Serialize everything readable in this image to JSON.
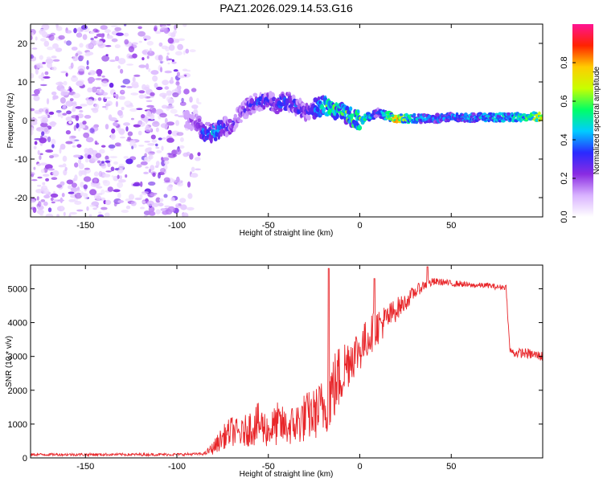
{
  "chart_data": [
    {
      "type": "heatmap",
      "title": "PAZ1.2026.029.14.53.G16",
      "xlabel": "Height of straight line (km)",
      "ylabel": "Frequency (Hz)",
      "xlim": [
        -180,
        100
      ],
      "ylim": [
        -25,
        25
      ],
      "x_ticks": [
        -150,
        -100,
        -50,
        0,
        50
      ],
      "x_tick_labels": [
        "-150",
        "-100",
        "-50",
        "0",
        "50"
      ],
      "y_ticks": [
        -20,
        -10,
        0,
        10,
        20
      ],
      "y_tick_labels": [
        "-20",
        "-10",
        "0",
        "10",
        "20"
      ],
      "colorbar": {
        "label": "Normalized spectral amplitude",
        "range": [
          0,
          1
        ],
        "ticks": [
          0.0,
          0.2,
          0.4,
          0.6,
          0.8
        ],
        "tick_labels": [
          "0.0",
          "0.2",
          "0.4",
          "0.6",
          "0.8"
        ],
        "colors": [
          "#ffffff",
          "#d9b3ff",
          "#8a2be2",
          "#2a2aff",
          "#00ccff",
          "#00ff66",
          "#c8ff00",
          "#ffcc00",
          "#ff2200",
          "#ff1493"
        ]
      },
      "ridge": {
        "x": [
          -95,
          -90,
          -85,
          -80,
          -75,
          -70,
          -65,
          -60,
          -55,
          -50,
          -45,
          -40,
          -35,
          -30,
          -25,
          -20,
          -15,
          -10,
          -5,
          0,
          10,
          20,
          30,
          40,
          50,
          60,
          70,
          80,
          90,
          100
        ],
        "freq": [
          0,
          0,
          -3,
          -3,
          -2,
          -1,
          2,
          4,
          5,
          5,
          4,
          5,
          4,
          2,
          3,
          4,
          3,
          2,
          1,
          0,
          2,
          0.5,
          0.5,
          0.5,
          0.8,
          0.8,
          0.8,
          0.8,
          1,
          1
        ],
        "amplitude": [
          0.2,
          0.25,
          0.45,
          0.5,
          0.4,
          0.35,
          0.3,
          0.35,
          0.4,
          0.4,
          0.4,
          0.45,
          0.4,
          0.35,
          0.4,
          0.6,
          0.65,
          0.6,
          0.75,
          0.7,
          0.35,
          0.9,
          0.5,
          0.45,
          0.45,
          0.5,
          0.5,
          0.55,
          0.6,
          0.85
        ],
        "noise_region": [
          -180,
          -90
        ]
      }
    },
    {
      "type": "line",
      "xlabel": "Height of straight line (km)",
      "ylabel": "SNR (10 * v/v)",
      "xlim": [
        -180,
        100
      ],
      "ylim": [
        0,
        5700
      ],
      "x_ticks": [
        -150,
        -100,
        -50,
        0,
        50
      ],
      "x_tick_labels": [
        "-150",
        "-100",
        "-50",
        "0",
        "50"
      ],
      "y_ticks": [
        0,
        1000,
        2000,
        3000,
        4000,
        5000
      ],
      "y_tick_labels": [
        "0",
        "1000",
        "2000",
        "3000",
        "4000",
        "5000"
      ],
      "color": "#e8262a",
      "envelope": {
        "x": [
          -180,
          -150,
          -100,
          -85,
          -80,
          -75,
          -70,
          -65,
          -60,
          -55,
          -50,
          -45,
          -40,
          -35,
          -30,
          -25,
          -20,
          -15,
          -10,
          -5,
          0,
          5,
          10,
          15,
          20,
          25,
          30,
          35,
          40,
          45,
          50,
          55,
          60,
          65,
          70,
          75,
          80,
          82,
          84,
          90,
          95,
          100
        ],
        "mean": [
          100,
          100,
          100,
          120,
          300,
          600,
          800,
          700,
          900,
          1000,
          800,
          1000,
          900,
          1000,
          1200,
          1300,
          1500,
          2000,
          2500,
          3000,
          3200,
          3600,
          3900,
          4100,
          4400,
          4600,
          4900,
          5100,
          5200,
          5200,
          5150,
          5150,
          5100,
          5100,
          5100,
          5050,
          5050,
          3200,
          3100,
          3100,
          3050,
          3000
        ],
        "spread": [
          80,
          80,
          80,
          80,
          400,
          700,
          900,
          800,
          1100,
          1300,
          1000,
          1300,
          1100,
          1300,
          1500,
          1500,
          1800,
          2200,
          2000,
          1500,
          1300,
          1200,
          1100,
          900,
          700,
          500,
          400,
          300,
          250,
          200,
          200,
          180,
          160,
          160,
          160,
          160,
          160,
          200,
          250,
          300,
          300,
          300
        ],
        "peaks": [
          {
            "x": -17,
            "y": 5600
          },
          {
            "x": 8,
            "y": 5300
          },
          {
            "x": 37,
            "y": 5650
          }
        ]
      }
    }
  ]
}
